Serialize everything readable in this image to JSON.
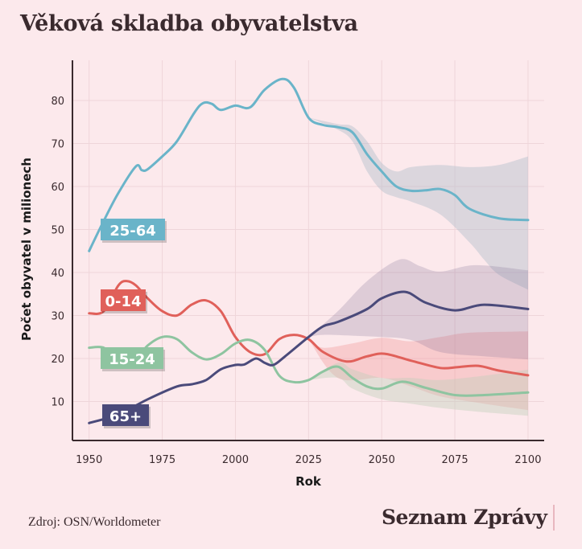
{
  "title": "Věková skladba obyvatelstva",
  "source": "Zdroj: OSN/Worldometer",
  "brand": "Seznam Zprávy",
  "chart_data": {
    "type": "line",
    "title": "Věková skladba obyvatelstva",
    "xlabel": "Rok",
    "ylabel": "Počet obyvatel v milionech",
    "xlim": [
      1950,
      2100
    ],
    "ylim": [
      0,
      88
    ],
    "x_ticks": [
      1950,
      1975,
      2000,
      2025,
      2050,
      2075,
      2100
    ],
    "y_ticks": [
      10,
      20,
      30,
      40,
      50,
      60,
      70,
      80
    ],
    "grid": true,
    "legend": "inline labels at left",
    "series": [
      {
        "name": "25-64",
        "color": "#6ab4c9",
        "points": [
          [
            1950,
            45
          ],
          [
            1955,
            52
          ],
          [
            1960,
            58.5
          ],
          [
            1966,
            64.7
          ],
          [
            1968,
            63.8
          ],
          [
            1970,
            64
          ],
          [
            1975,
            67
          ],
          [
            1980,
            70.5
          ],
          [
            1986,
            77.2
          ],
          [
            1989,
            79.4
          ],
          [
            1992,
            79.2
          ],
          [
            1995,
            77.8
          ],
          [
            2000,
            78.8
          ],
          [
            2005,
            78.4
          ],
          [
            2010,
            82.5
          ],
          [
            2016,
            85
          ],
          [
            2020,
            83
          ],
          [
            2025,
            76
          ],
          [
            2030,
            74.3
          ],
          [
            2035,
            73.8
          ],
          [
            2040,
            72.6
          ],
          [
            2045,
            67.5
          ],
          [
            2050,
            63.5
          ],
          [
            2055,
            60
          ],
          [
            2060,
            59
          ],
          [
            2065,
            59.1
          ],
          [
            2070,
            59.4
          ],
          [
            2075,
            58
          ],
          [
            2080,
            54.8
          ],
          [
            2090,
            52.6
          ],
          [
            2100,
            52.2
          ]
        ],
        "band_upper": [
          [
            2025,
            76
          ],
          [
            2035,
            74.5
          ],
          [
            2040,
            74
          ],
          [
            2045,
            70.5
          ],
          [
            2050,
            65.5
          ],
          [
            2055,
            63.5
          ],
          [
            2060,
            64.5
          ],
          [
            2070,
            65
          ],
          [
            2080,
            64.5
          ],
          [
            2090,
            65
          ],
          [
            2100,
            67
          ]
        ],
        "band_lower": [
          [
            2025,
            76
          ],
          [
            2035,
            73.2
          ],
          [
            2040,
            70.5
          ],
          [
            2045,
            63.5
          ],
          [
            2050,
            59
          ],
          [
            2055,
            57.5
          ],
          [
            2060,
            56.5
          ],
          [
            2070,
            53.5
          ],
          [
            2080,
            47
          ],
          [
            2085,
            43
          ],
          [
            2090,
            39.5
          ],
          [
            2100,
            36
          ]
        ]
      },
      {
        "name": "0-14",
        "color": "#e0605a",
        "points": [
          [
            1950,
            30.5
          ],
          [
            1955,
            31
          ],
          [
            1960,
            37
          ],
          [
            1963,
            38
          ],
          [
            1966,
            37
          ],
          [
            1970,
            34
          ],
          [
            1975,
            31
          ],
          [
            1980,
            30
          ],
          [
            1985,
            32.5
          ],
          [
            1990,
            33.5
          ],
          [
            1995,
            31
          ],
          [
            2000,
            25
          ],
          [
            2005,
            21.5
          ],
          [
            2010,
            21
          ],
          [
            2015,
            24.5
          ],
          [
            2020,
            25.5
          ],
          [
            2025,
            24.5
          ],
          [
            2030,
            21.5
          ],
          [
            2038,
            19.3
          ],
          [
            2045,
            20.5
          ],
          [
            2051,
            21.1
          ],
          [
            2060,
            19.5
          ],
          [
            2070,
            17.8
          ],
          [
            2076,
            18
          ],
          [
            2083,
            18.3
          ],
          [
            2090,
            17.2
          ],
          [
            2100,
            16.1
          ]
        ],
        "band_upper": [
          [
            2025,
            24.5
          ],
          [
            2030,
            22.5
          ],
          [
            2040,
            23.5
          ],
          [
            2050,
            24.8
          ],
          [
            2060,
            24
          ],
          [
            2070,
            25
          ],
          [
            2080,
            26
          ],
          [
            2100,
            26.3
          ]
        ],
        "band_lower": [
          [
            2025,
            24.5
          ],
          [
            2035,
            15.5
          ],
          [
            2050,
            15.5
          ],
          [
            2060,
            13.5
          ],
          [
            2070,
            11.2
          ],
          [
            2085,
            9.5
          ],
          [
            2100,
            8
          ]
        ]
      },
      {
        "name": "15-24",
        "color": "#8ec4a0",
        "points": [
          [
            1950,
            22.5
          ],
          [
            1955,
            22.5
          ],
          [
            1960,
            19.8
          ],
          [
            1965,
            19.2
          ],
          [
            1970,
            23
          ],
          [
            1975,
            25
          ],
          [
            1980,
            24.5
          ],
          [
            1985,
            21.5
          ],
          [
            1990,
            19.8
          ],
          [
            1995,
            21
          ],
          [
            2000,
            23.5
          ],
          [
            2005,
            24.3
          ],
          [
            2010,
            22
          ],
          [
            2015,
            16
          ],
          [
            2020,
            14.5
          ],
          [
            2025,
            15
          ],
          [
            2030,
            17
          ],
          [
            2035,
            18.1
          ],
          [
            2040,
            15.5
          ],
          [
            2045,
            13.5
          ],
          [
            2050,
            13
          ],
          [
            2057,
            14.6
          ],
          [
            2065,
            13.2
          ],
          [
            2075,
            11.5
          ],
          [
            2085,
            11.5
          ],
          [
            2100,
            12.1
          ]
        ],
        "band_upper": [
          [
            2025,
            15
          ],
          [
            2035,
            19
          ],
          [
            2040,
            17.5
          ],
          [
            2050,
            15.5
          ],
          [
            2060,
            15.5
          ],
          [
            2070,
            15
          ],
          [
            2085,
            16
          ],
          [
            2100,
            17.4
          ]
        ],
        "band_lower": [
          [
            2025,
            15
          ],
          [
            2035,
            15.5
          ],
          [
            2040,
            13
          ],
          [
            2050,
            10.5
          ],
          [
            2060,
            9.5
          ],
          [
            2070,
            8.5
          ],
          [
            2085,
            7.5
          ],
          [
            2100,
            6.7
          ]
        ]
      },
      {
        "name": "65+",
        "color": "#4a4a7a",
        "points": [
          [
            1950,
            5
          ],
          [
            1960,
            7
          ],
          [
            1970,
            10.5
          ],
          [
            1980,
            13.5
          ],
          [
            1985,
            14
          ],
          [
            1990,
            15
          ],
          [
            1995,
            17.5
          ],
          [
            2000,
            18.5
          ],
          [
            2003,
            18.6
          ],
          [
            2007,
            20
          ],
          [
            2010,
            19
          ],
          [
            2013,
            18.5
          ],
          [
            2017,
            20.5
          ],
          [
            2025,
            25
          ],
          [
            2030,
            27.5
          ],
          [
            2035,
            28.5
          ],
          [
            2045,
            31.5
          ],
          [
            2050,
            34
          ],
          [
            2058,
            35.5
          ],
          [
            2065,
            33
          ],
          [
            2075,
            31.2
          ],
          [
            2085,
            32.5
          ],
          [
            2100,
            31.5
          ]
        ],
        "band_upper": [
          [
            2025,
            25
          ],
          [
            2035,
            31
          ],
          [
            2045,
            38
          ],
          [
            2056,
            43
          ],
          [
            2063,
            41.5
          ],
          [
            2070,
            40.2
          ],
          [
            2082,
            41.7
          ],
          [
            2100,
            40.5
          ]
        ],
        "band_lower": [
          [
            2025,
            25
          ],
          [
            2030,
            25.5
          ],
          [
            2040,
            25.3
          ],
          [
            2050,
            25
          ],
          [
            2060,
            24.3
          ],
          [
            2070,
            21.5
          ],
          [
            2085,
            20.5
          ],
          [
            2100,
            19.8
          ]
        ]
      }
    ]
  }
}
